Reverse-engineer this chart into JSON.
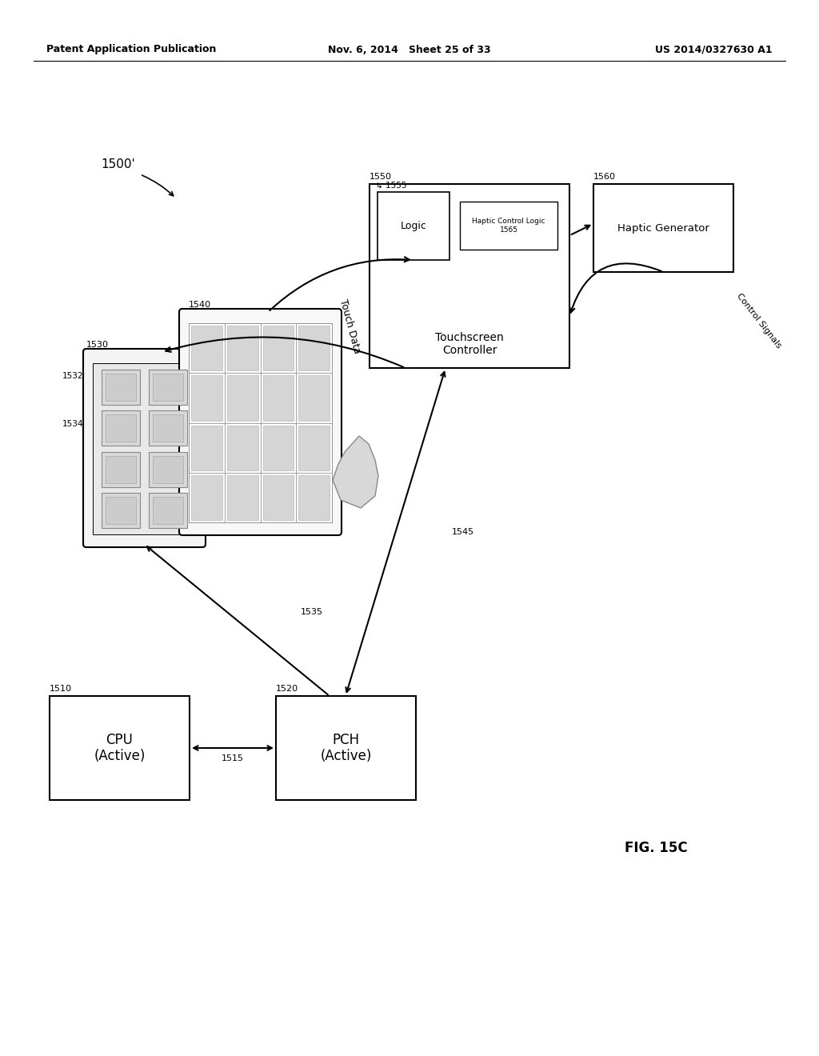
{
  "bg_color": "#ffffff",
  "header_left": "Patent Application Publication",
  "header_mid": "Nov. 6, 2014   Sheet 25 of 33",
  "header_right": "US 2014/0327630 A1",
  "fig_label": "FIG. 15C"
}
